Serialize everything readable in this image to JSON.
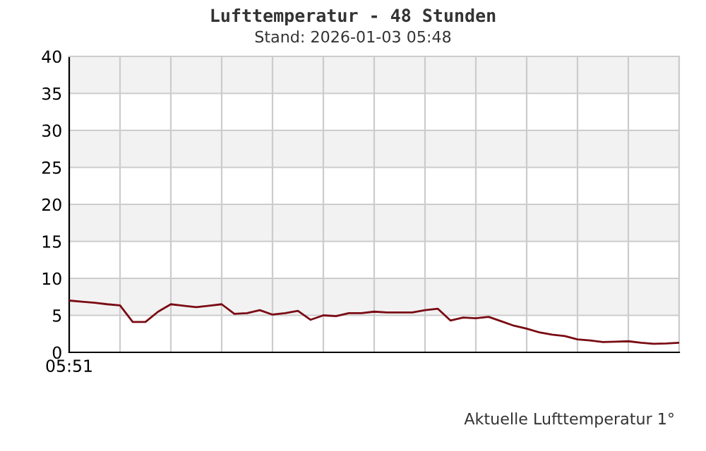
{
  "chart_data": {
    "type": "line",
    "title": "Lufttemperatur - 48 Stunden",
    "subtitle": "Stand: 2026-01-03 05:48",
    "annotations": [
      "Aktuelle Lufttemperatur 1°"
    ],
    "categories": [
      "05:51",
      null,
      null,
      null,
      null,
      null,
      null,
      null,
      null,
      null,
      null,
      null,
      null,
      null,
      null,
      null,
      null,
      null,
      null,
      null,
      null,
      null,
      null,
      null,
      null,
      null,
      null,
      null,
      null,
      null,
      null,
      null,
      null,
      null,
      null,
      null,
      null,
      null,
      null,
      null,
      null,
      null,
      null,
      null,
      null,
      null,
      null,
      null,
      null
    ],
    "series": [
      {
        "color": "#7a0a14",
        "values": [
          7.0,
          6.85,
          6.7,
          6.5,
          6.35,
          4.1,
          4.1,
          5.5,
          6.5,
          6.3,
          6.1,
          6.3,
          6.5,
          5.2,
          5.3,
          5.7,
          5.1,
          5.3,
          5.6,
          4.4,
          5.0,
          4.9,
          5.3,
          5.3,
          5.5,
          5.4,
          5.4,
          5.4,
          5.7,
          5.9,
          4.3,
          4.7,
          4.6,
          4.8,
          4.2,
          3.6,
          3.2,
          2.7,
          2.4,
          2.2,
          1.75,
          1.6,
          1.4,
          1.45,
          1.5,
          1.3,
          1.15,
          1.2,
          1.3
        ]
      }
    ],
    "ylim": [
      0,
      40
    ],
    "yticks": [
      0,
      5,
      10,
      15,
      20,
      25,
      30,
      35,
      40
    ],
    "grid": true
  }
}
